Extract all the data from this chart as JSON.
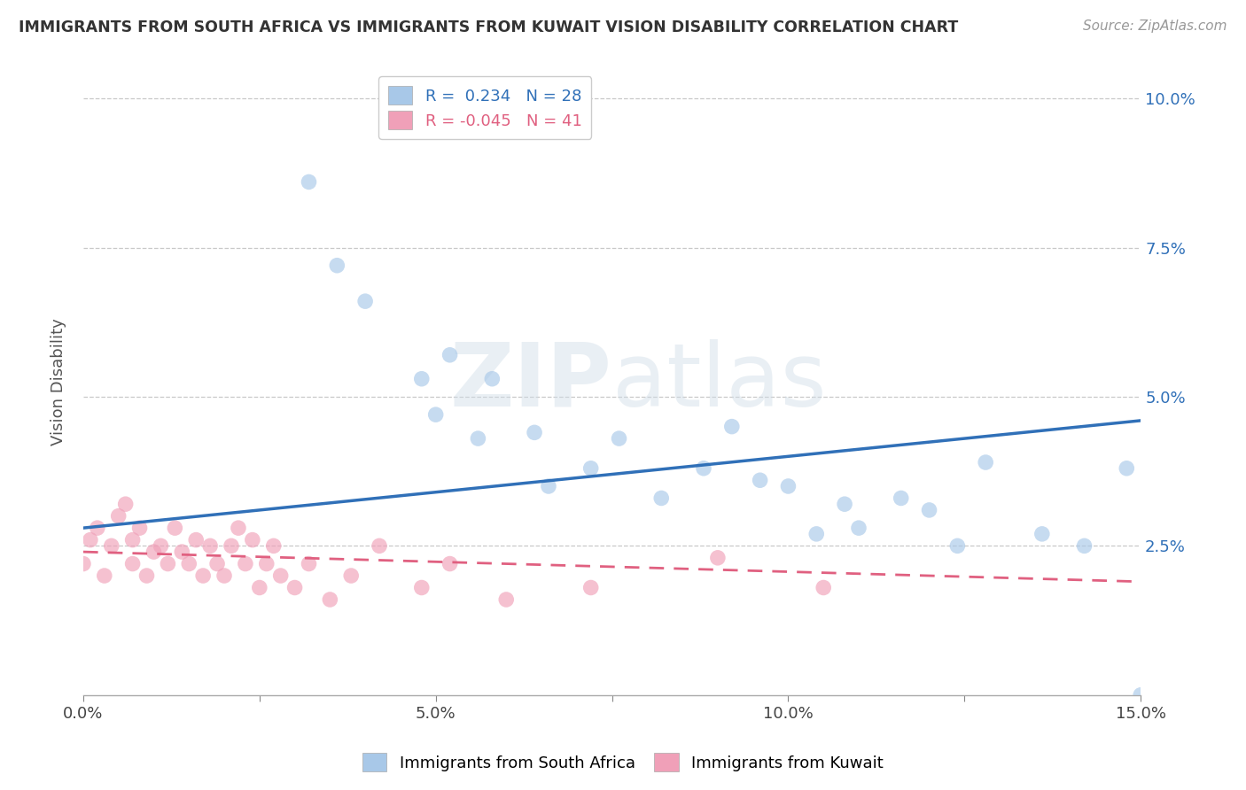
{
  "title": "IMMIGRANTS FROM SOUTH AFRICA VS IMMIGRANTS FROM KUWAIT VISION DISABILITY CORRELATION CHART",
  "source": "Source: ZipAtlas.com",
  "ylabel": "Vision Disability",
  "xlim": [
    0.0,
    0.15
  ],
  "ylim": [
    0.0,
    0.105
  ],
  "xtick_positions": [
    0.0,
    0.025,
    0.05,
    0.075,
    0.1,
    0.125,
    0.15
  ],
  "xticklabels": [
    "0.0%",
    "",
    "",
    "",
    "",
    "",
    "15.0%"
  ],
  "ytick_positions": [
    0.025,
    0.05,
    0.075,
    0.1
  ],
  "ytick_labels": [
    "2.5%",
    "5.0%",
    "7.5%",
    "10.0%"
  ],
  "legend_r1": "R =  0.234",
  "legend_n1": "N = 28",
  "legend_r2": "R = -0.045",
  "legend_n2": "N = 41",
  "color_sa": "#a8c8e8",
  "color_kuwait": "#f0a0b8",
  "trendline_sa_color": "#3070b8",
  "trendline_kuwait_color": "#e06080",
  "background_color": "#ffffff",
  "grid_color": "#c8c8c8",
  "watermark_part1": "ZIP",
  "watermark_part2": "atlas",
  "sa_x": [
    0.032,
    0.036,
    0.04,
    0.048,
    0.05,
    0.052,
    0.056,
    0.058,
    0.064,
    0.066,
    0.072,
    0.076,
    0.082,
    0.088,
    0.092,
    0.096,
    0.1,
    0.104,
    0.108,
    0.11,
    0.116,
    0.12,
    0.124,
    0.128,
    0.136,
    0.142,
    0.148,
    0.15
  ],
  "sa_y": [
    0.086,
    0.072,
    0.066,
    0.053,
    0.047,
    0.057,
    0.043,
    0.053,
    0.044,
    0.035,
    0.038,
    0.043,
    0.033,
    0.038,
    0.045,
    0.036,
    0.035,
    0.027,
    0.032,
    0.028,
    0.033,
    0.031,
    0.025,
    0.039,
    0.027,
    0.025,
    0.038,
    0.0
  ],
  "kuwait_x": [
    0.0,
    0.001,
    0.002,
    0.003,
    0.004,
    0.005,
    0.006,
    0.007,
    0.007,
    0.008,
    0.009,
    0.01,
    0.011,
    0.012,
    0.013,
    0.014,
    0.015,
    0.016,
    0.017,
    0.018,
    0.019,
    0.02,
    0.021,
    0.022,
    0.023,
    0.024,
    0.025,
    0.026,
    0.027,
    0.028,
    0.03,
    0.032,
    0.035,
    0.038,
    0.042,
    0.048,
    0.052,
    0.06,
    0.072,
    0.09,
    0.105
  ],
  "kuwait_y": [
    0.022,
    0.026,
    0.028,
    0.02,
    0.025,
    0.03,
    0.032,
    0.022,
    0.026,
    0.028,
    0.02,
    0.024,
    0.025,
    0.022,
    0.028,
    0.024,
    0.022,
    0.026,
    0.02,
    0.025,
    0.022,
    0.02,
    0.025,
    0.028,
    0.022,
    0.026,
    0.018,
    0.022,
    0.025,
    0.02,
    0.018,
    0.022,
    0.016,
    0.02,
    0.025,
    0.018,
    0.022,
    0.016,
    0.018,
    0.023,
    0.018
  ],
  "sa_trendline_x": [
    0.0,
    0.15
  ],
  "sa_trendline_y": [
    0.028,
    0.046
  ],
  "kuwait_trendline_x": [
    0.0,
    0.15
  ],
  "kuwait_trendline_y": [
    0.024,
    0.019
  ]
}
